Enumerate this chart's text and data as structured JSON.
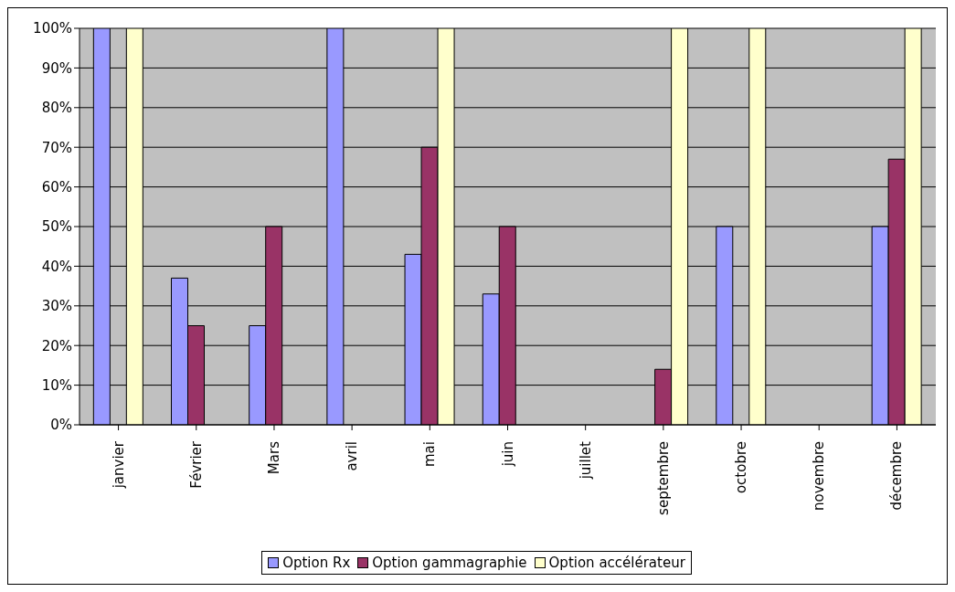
{
  "chart_data": {
    "type": "bar",
    "categories": [
      "janvier",
      "Février",
      "Mars",
      "avril",
      "mai",
      "juin",
      "juillet",
      "septembre",
      "octobre",
      "novembre",
      "décembre"
    ],
    "series": [
      {
        "name": "Option Rx",
        "color": "#9999ff",
        "values": [
          100,
          37,
          25,
          100,
          43,
          33,
          null,
          null,
          50,
          null,
          50
        ]
      },
      {
        "name": "Option gammagraphie",
        "color": "#993366",
        "values": [
          null,
          25,
          50,
          null,
          70,
          50,
          null,
          14,
          null,
          null,
          67
        ]
      },
      {
        "name": "Option accélérateur",
        "color": "#ffffcc",
        "values": [
          100,
          null,
          null,
          null,
          100,
          null,
          null,
          100,
          100,
          null,
          100
        ]
      }
    ],
    "ylim": [
      0,
      100
    ],
    "yticks": [
      {
        "value": 0,
        "label": "0%"
      },
      {
        "value": 10,
        "label": "10%"
      },
      {
        "value": 20,
        "label": "20%"
      },
      {
        "value": 30,
        "label": "30%"
      },
      {
        "value": 40,
        "label": "40%"
      },
      {
        "value": 50,
        "label": "50%"
      },
      {
        "value": 60,
        "label": "60%"
      },
      {
        "value": 70,
        "label": "70%"
      },
      {
        "value": 80,
        "label": "80%"
      },
      {
        "value": 90,
        "label": "90%"
      },
      {
        "value": 100,
        "label": "100%"
      }
    ],
    "grid": "y",
    "legend": "bottom"
  }
}
